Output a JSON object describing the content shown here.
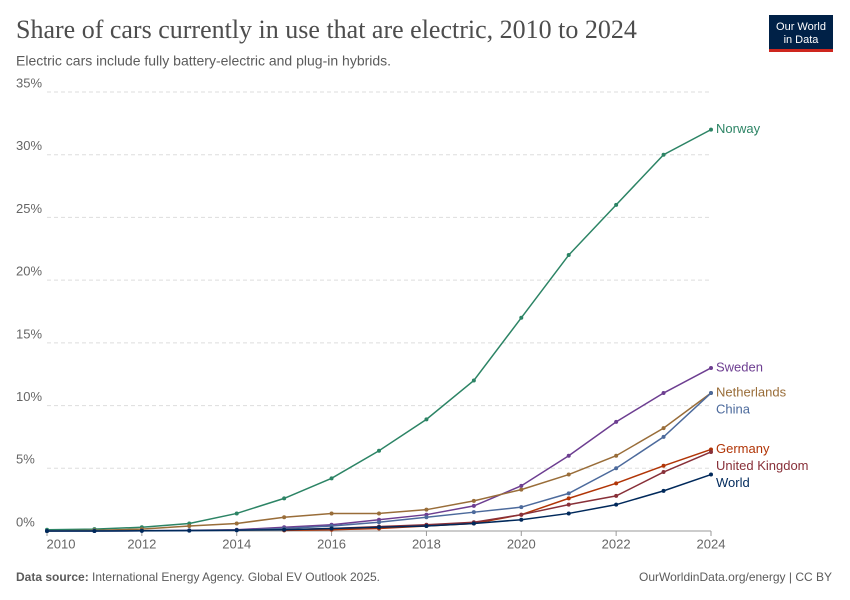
{
  "chart_data": {
    "type": "line",
    "title": "Share of cars currently in use that are electric, 2010 to 2024",
    "subtitle": "Electric cars include fully battery-electric and plug-in hybrids.",
    "logo": [
      "Our World",
      "in Data"
    ],
    "source_label": "Data source:",
    "source": "International Energy Agency. Global EV Outlook 2025.",
    "credit": "OurWorldinData.org/energy | CC BY",
    "x": [
      2010,
      2011,
      2012,
      2013,
      2014,
      2015,
      2016,
      2017,
      2018,
      2019,
      2020,
      2021,
      2022,
      2023,
      2024
    ],
    "xlim": [
      2010,
      2024
    ],
    "xticks": [
      2010,
      2012,
      2014,
      2016,
      2018,
      2020,
      2022,
      2024
    ],
    "ylim": [
      0,
      35
    ],
    "yticks": [
      {
        "value": 0,
        "label": "0%"
      },
      {
        "value": 5,
        "label": "5%"
      },
      {
        "value": 10,
        "label": "10%"
      },
      {
        "value": 15,
        "label": "15%"
      },
      {
        "value": 20,
        "label": "20%"
      },
      {
        "value": 25,
        "label": "25%"
      },
      {
        "value": 30,
        "label": "30%"
      },
      {
        "value": 35,
        "label": "35%"
      }
    ],
    "grid": true,
    "series": [
      {
        "name": "Norway",
        "color": "#2c8465",
        "values": [
          0.1,
          0.15,
          0.3,
          0.6,
          1.4,
          2.6,
          4.2,
          6.4,
          8.9,
          12,
          17,
          22,
          26,
          30,
          32
        ]
      },
      {
        "name": "Sweden",
        "color": "#6d3e91",
        "values": [
          0,
          0,
          0.02,
          0.05,
          0.1,
          0.3,
          0.5,
          0.9,
          1.3,
          2.0,
          3.6,
          6.0,
          8.7,
          11,
          13
        ]
      },
      {
        "name": "Netherlands",
        "color": "#996d39",
        "values": [
          0,
          0.05,
          0.15,
          0.4,
          0.6,
          1.1,
          1.4,
          1.4,
          1.7,
          2.4,
          3.3,
          4.5,
          6.0,
          8.2,
          11
        ]
      },
      {
        "name": "China",
        "color": "#4c6a9c",
        "values": [
          0,
          0,
          0.01,
          0.02,
          0.05,
          0.2,
          0.4,
          0.7,
          1.1,
          1.5,
          1.9,
          3.0,
          5.0,
          7.5,
          11
        ]
      },
      {
        "name": "Germany",
        "color": "#b13507",
        "values": [
          null,
          null,
          null,
          null,
          null,
          0.05,
          0.1,
          0.2,
          0.4,
          0.6,
          1.3,
          2.6,
          3.8,
          5.2,
          6.5
        ]
      },
      {
        "name": "United Kingdom",
        "color": "#883039",
        "values": [
          null,
          null,
          null,
          null,
          null,
          0.1,
          0.2,
          0.35,
          0.5,
          0.7,
          1.3,
          2.1,
          2.8,
          4.7,
          6.3
        ]
      },
      {
        "name": "World",
        "color": "#00295b",
        "values": [
          0,
          0,
          0.02,
          0.04,
          0.07,
          0.1,
          0.2,
          0.3,
          0.4,
          0.6,
          0.9,
          1.4,
          2.1,
          3.2,
          4.5
        ]
      }
    ]
  }
}
